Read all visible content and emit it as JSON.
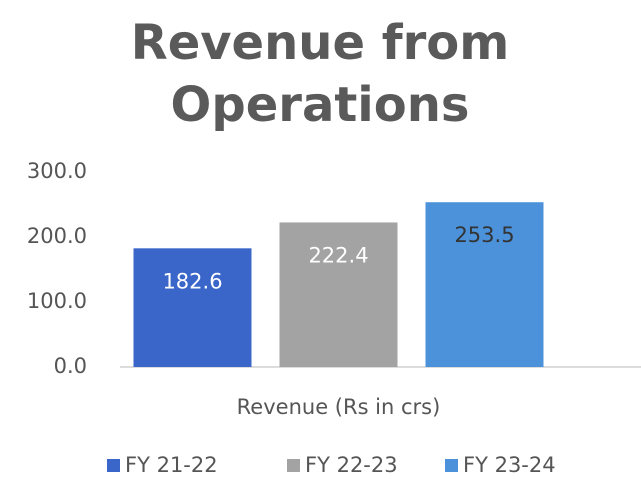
{
  "chart_data": {
    "type": "bar",
    "title": "Revenue from Operations",
    "categories": [
      "Revenue (Rs in crs)"
    ],
    "series": [
      {
        "name": "FY 21-22",
        "color": "#3b66c9",
        "values": [
          182.6
        ]
      },
      {
        "name": "FY 22-23",
        "color": "#a3a3a3",
        "values": [
          222.4
        ]
      },
      {
        "name": "FY 23-24",
        "color": "#4b92da",
        "values": [
          253.5
        ]
      }
    ],
    "ylim": [
      0,
      300
    ],
    "yticks": [
      {
        "value": 0,
        "label": "0.0"
      },
      {
        "value": 100,
        "label": "100.0"
      },
      {
        "value": 200,
        "label": "200.0"
      },
      {
        "value": 300,
        "label": "300.0"
      }
    ],
    "grid": false,
    "legend": "bottom"
  }
}
